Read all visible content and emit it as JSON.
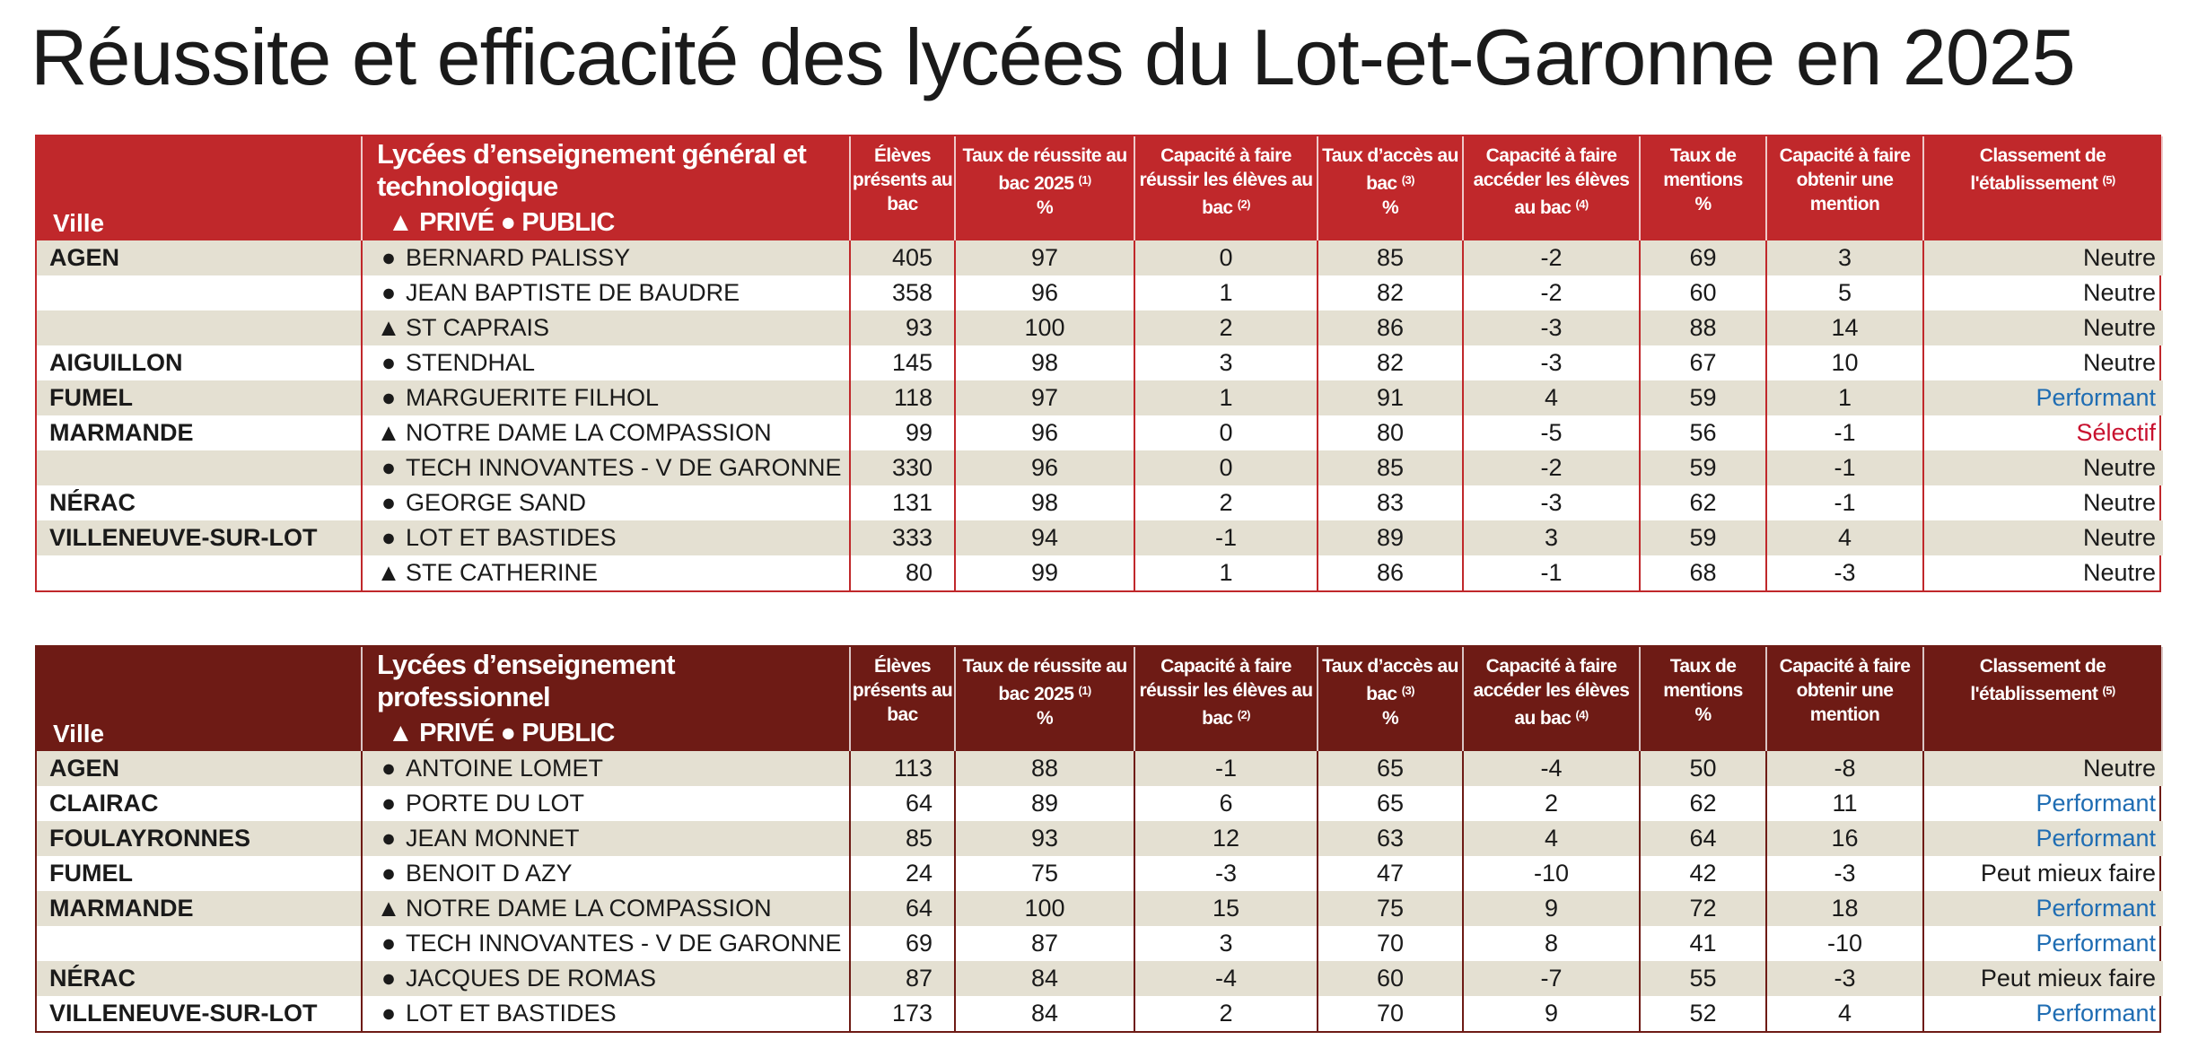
{
  "title": "Réussite et efficacité des lycées du Lot-et-Garonne en 2025",
  "tables": [
    {
      "color": "#c0282b",
      "header": {
        "ville": "Ville",
        "lycees": "Lycées d’enseignement général et technologique",
        "legend": "▲ PRIVÉ ● PUBLIC",
        "columns": [
          {
            "text": "Élèves présents au bac"
          },
          {
            "text": "Taux de réussite au bac 2025",
            "note": "(1)",
            "unit": "%"
          },
          {
            "text": "Capacité à faire réussir les élèves au bac",
            "note": "(2)"
          },
          {
            "text": "Taux d’accès au bac",
            "note": "(3)",
            "unit": "%"
          },
          {
            "text": "Capacité à faire accéder les élèves au bac",
            "note": "(4)"
          },
          {
            "text": "Taux de mentions",
            "unit": "%"
          },
          {
            "text": "Capacité à faire obtenir une mention"
          },
          {
            "text": "Classement de l'établissement",
            "note": "(5)"
          }
        ]
      },
      "rows": [
        {
          "cells": [
            "AGEN",
            "●",
            "BERNARD PALISSY",
            405,
            97,
            0,
            85,
            -2,
            69,
            3,
            "Neutre"
          ],
          "classement_color": "#1a1a1a"
        },
        {
          "cells": [
            null,
            "●",
            "JEAN BAPTISTE DE BAUDRE",
            358,
            96,
            1,
            82,
            -2,
            60,
            5,
            "Neutre"
          ],
          "classement_color": "#1a1a1a"
        },
        {
          "cells": [
            null,
            "▲",
            "ST CAPRAIS",
            93,
            100,
            2,
            86,
            -3,
            88,
            14,
            "Neutre"
          ],
          "classement_color": "#1a1a1a"
        },
        {
          "cells": [
            "AIGUILLON",
            "●",
            "STENDHAL",
            145,
            98,
            3,
            82,
            -3,
            67,
            10,
            "Neutre"
          ],
          "classement_color": "#1a1a1a"
        },
        {
          "cells": [
            "FUMEL",
            "●",
            "MARGUERITE FILHOL",
            118,
            97,
            1,
            91,
            4,
            59,
            1,
            "Performant"
          ],
          "classement_color": "#1f6db3"
        },
        {
          "cells": [
            "MARMANDE",
            "▲",
            "NOTRE DAME LA COMPASSION",
            99,
            96,
            0,
            80,
            -5,
            56,
            -1,
            "Sélectif"
          ],
          "classement_color": "#c8102e"
        },
        {
          "cells": [
            null,
            "●",
            "TECH INNOVANTES - V DE GARONNE",
            330,
            96,
            0,
            85,
            -2,
            59,
            -1,
            "Neutre"
          ],
          "classement_color": "#1a1a1a"
        },
        {
          "cells": [
            "NÉRAC",
            "●",
            "GEORGE SAND",
            131,
            98,
            2,
            83,
            -3,
            62,
            -1,
            "Neutre"
          ],
          "classement_color": "#1a1a1a"
        },
        {
          "cells": [
            "VILLENEUVE-SUR-LOT",
            "●",
            "LOT ET BASTIDES",
            333,
            94,
            -1,
            89,
            3,
            59,
            4,
            "Neutre"
          ],
          "classement_color": "#1a1a1a"
        },
        {
          "cells": [
            null,
            "▲",
            "STE CATHERINE",
            80,
            99,
            1,
            86,
            -1,
            68,
            -3,
            "Neutre"
          ],
          "classement_color": "#1a1a1a"
        }
      ]
    },
    {
      "color": "#6e1b15",
      "header": {
        "ville": "Ville",
        "lycees": "Lycées d’enseignement professionnel",
        "legend": "▲ PRIVÉ ● PUBLIC",
        "columns": [
          {
            "text": "Élèves présents au bac"
          },
          {
            "text": "Taux de réussite au bac 2025",
            "note": "(1)",
            "unit": "%"
          },
          {
            "text": "Capacité à faire réussir les élèves au bac",
            "note": "(2)"
          },
          {
            "text": "Taux d’accès au bac",
            "note": "(3)",
            "unit": "%"
          },
          {
            "text": "Capacité à faire accéder les élèves au bac",
            "note": "(4)"
          },
          {
            "text": "Taux de mentions",
            "unit": "%"
          },
          {
            "text": "Capacité à faire obtenir une mention"
          },
          {
            "text": "Classement de l'établissement",
            "note": "(5)"
          }
        ]
      },
      "rows": [
        {
          "cells": [
            "AGEN",
            "●",
            "ANTOINE LOMET",
            113,
            88,
            -1,
            65,
            -4,
            50,
            -8,
            "Neutre"
          ],
          "classement_color": "#1a1a1a"
        },
        {
          "cells": [
            "CLAIRAC",
            "●",
            "PORTE DU LOT",
            64,
            89,
            6,
            65,
            2,
            62,
            11,
            "Performant"
          ],
          "classement_color": "#1f6db3"
        },
        {
          "cells": [
            "FOULAYRONNES",
            "●",
            "JEAN MONNET",
            85,
            93,
            12,
            63,
            4,
            64,
            16,
            "Performant"
          ],
          "classement_color": "#1f6db3"
        },
        {
          "cells": [
            "FUMEL",
            "●",
            "BENOIT D AZY",
            24,
            75,
            -3,
            47,
            -10,
            42,
            -3,
            "Peut mieux faire"
          ],
          "classement_color": "#1a1a1a"
        },
        {
          "cells": [
            "MARMANDE",
            "▲",
            "NOTRE DAME LA COMPASSION",
            64,
            100,
            15,
            75,
            9,
            72,
            18,
            "Performant"
          ],
          "classement_color": "#1f6db3"
        },
        {
          "cells": [
            null,
            "●",
            "TECH INNOVANTES - V DE GARONNE",
            69,
            87,
            3,
            70,
            8,
            41,
            -10,
            "Performant"
          ],
          "classement_color": "#1f6db3"
        },
        {
          "cells": [
            "NÉRAC",
            "●",
            "JACQUES DE ROMAS",
            87,
            84,
            -4,
            60,
            -7,
            55,
            -3,
            "Peut mieux faire"
          ],
          "classement_color": "#1a1a1a"
        },
        {
          "cells": [
            "VILLENEUVE-SUR-LOT",
            "●",
            "LOT ET BASTIDES",
            173,
            84,
            2,
            70,
            9,
            52,
            4,
            "Performant"
          ],
          "classement_color": "#1f6db3"
        }
      ]
    }
  ]
}
